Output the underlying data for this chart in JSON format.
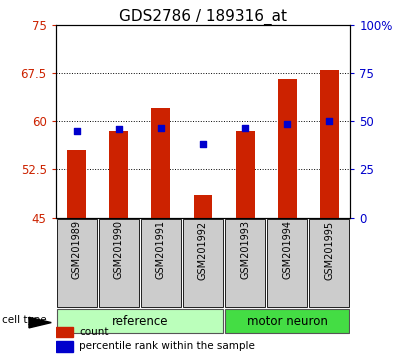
{
  "title": "GDS2786 / 189316_at",
  "samples": [
    "GSM201989",
    "GSM201990",
    "GSM201991",
    "GSM201992",
    "GSM201993",
    "GSM201994",
    "GSM201995"
  ],
  "bar_values": [
    55.5,
    58.5,
    62.0,
    48.5,
    58.5,
    66.5,
    68.0
  ],
  "dot_values": [
    58.5,
    58.8,
    59.0,
    56.5,
    59.0,
    59.5,
    60.0
  ],
  "ylim_left": [
    45,
    75
  ],
  "ylim_right": [
    0,
    100
  ],
  "yticks_left": [
    45,
    52.5,
    60,
    67.5,
    75
  ],
  "yticks_right": [
    0,
    25,
    50,
    75,
    100
  ],
  "ytick_labels_left": [
    "45",
    "52.5",
    "60",
    "67.5",
    "75"
  ],
  "ytick_labels_right": [
    "0",
    "25",
    "50",
    "75",
    "100%"
  ],
  "bar_color": "#cc2200",
  "dot_color": "#0000cc",
  "bar_bottom": 45,
  "ref_count": 4,
  "mot_count": 3,
  "groups": [
    {
      "label": "reference",
      "color": "#bbffbb"
    },
    {
      "label": "motor neuron",
      "color": "#44dd44"
    }
  ],
  "cell_type_label": "cell type",
  "legend_items": [
    {
      "label": "count",
      "color": "#cc2200"
    },
    {
      "label": "percentile rank within the sample",
      "color": "#0000cc"
    }
  ],
  "background_xtick": "#cccccc",
  "title_fontsize": 11,
  "tick_fontsize": 8.5,
  "label_fontsize": 8
}
